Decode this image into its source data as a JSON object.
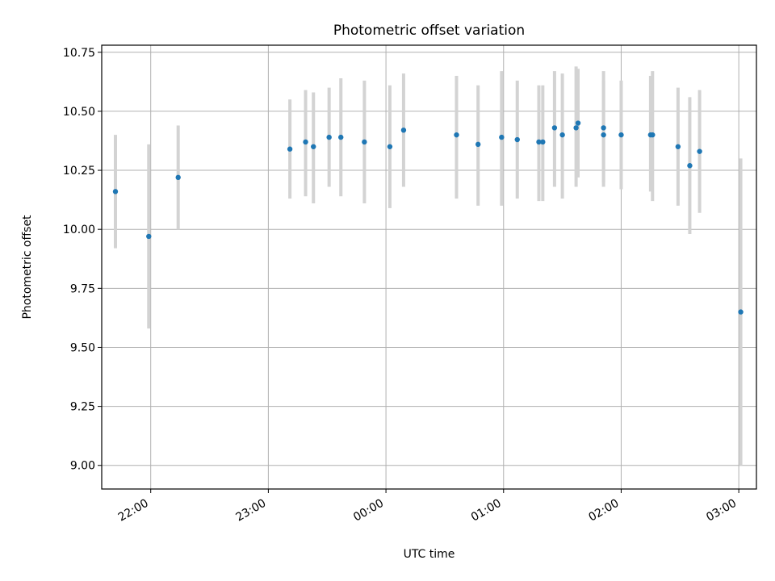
{
  "chart_data": {
    "type": "scatter",
    "title": "Photometric offset variation",
    "xlabel": "UTC time",
    "ylabel": "Photometric offset",
    "xlim": [
      "21:35",
      "03:09"
    ],
    "ylim": [
      8.9,
      10.78
    ],
    "grid": true,
    "x_ticks": [
      "22:00",
      "23:00",
      "00:00",
      "01:00",
      "02:00",
      "03:00"
    ],
    "y_ticks": [
      "9.00",
      "9.25",
      "9.50",
      "9.75",
      "10.00",
      "10.25",
      "10.50",
      "10.75"
    ],
    "colors": {
      "point": "#1f77b4",
      "errorbar": "#d3d3d3",
      "grid": "#b0b0b0"
    },
    "points": [
      {
        "x": "21:42",
        "y": 10.16,
        "ylow": 9.92,
        "yhigh": 10.4
      },
      {
        "x": "21:59",
        "y": 9.97,
        "ylow": 9.58,
        "yhigh": 10.36
      },
      {
        "x": "22:14",
        "y": 10.22,
        "ylow": 10.0,
        "yhigh": 10.44
      },
      {
        "x": "23:11",
        "y": 10.34,
        "ylow": 10.13,
        "yhigh": 10.55
      },
      {
        "x": "23:19",
        "y": 10.37,
        "ylow": 10.14,
        "yhigh": 10.59
      },
      {
        "x": "23:23",
        "y": 10.35,
        "ylow": 10.11,
        "yhigh": 10.58
      },
      {
        "x": "23:31",
        "y": 10.39,
        "ylow": 10.18,
        "yhigh": 10.6
      },
      {
        "x": "23:37",
        "y": 10.39,
        "ylow": 10.14,
        "yhigh": 10.64
      },
      {
        "x": "23:49",
        "y": 10.37,
        "ylow": 10.11,
        "yhigh": 10.63
      },
      {
        "x": "00:02",
        "y": 10.35,
        "ylow": 10.09,
        "yhigh": 10.61
      },
      {
        "x": "00:09",
        "y": 10.42,
        "ylow": 10.18,
        "yhigh": 10.66
      },
      {
        "x": "00:36",
        "y": 10.4,
        "ylow": 10.13,
        "yhigh": 10.65
      },
      {
        "x": "00:47",
        "y": 10.36,
        "ylow": 10.1,
        "yhigh": 10.61
      },
      {
        "x": "00:59",
        "y": 10.39,
        "ylow": 10.1,
        "yhigh": 10.67
      },
      {
        "x": "01:07",
        "y": 10.38,
        "ylow": 10.13,
        "yhigh": 10.63
      },
      {
        "x": "01:18",
        "y": 10.37,
        "ylow": 10.12,
        "yhigh": 10.61
      },
      {
        "x": "01:20",
        "y": 10.37,
        "ylow": 10.12,
        "yhigh": 10.61
      },
      {
        "x": "01:26",
        "y": 10.43,
        "ylow": 10.18,
        "yhigh": 10.67
      },
      {
        "x": "01:30",
        "y": 10.4,
        "ylow": 10.13,
        "yhigh": 10.66
      },
      {
        "x": "01:37",
        "y": 10.43,
        "ylow": 10.18,
        "yhigh": 10.69
      },
      {
        "x": "01:38",
        "y": 10.45,
        "ylow": 10.22,
        "yhigh": 10.68
      },
      {
        "x": "01:51",
        "y": 10.4,
        "ylow": 10.18,
        "yhigh": 10.63
      },
      {
        "x": "01:51",
        "y": 10.43,
        "ylow": 10.2,
        "yhigh": 10.67
      },
      {
        "x": "02:00",
        "y": 10.4,
        "ylow": 10.17,
        "yhigh": 10.63
      },
      {
        "x": "02:15",
        "y": 10.4,
        "ylow": 10.16,
        "yhigh": 10.65
      },
      {
        "x": "02:16",
        "y": 10.4,
        "ylow": 10.12,
        "yhigh": 10.67
      },
      {
        "x": "02:29",
        "y": 10.35,
        "ylow": 10.1,
        "yhigh": 10.6
      },
      {
        "x": "02:35",
        "y": 10.27,
        "ylow": 9.98,
        "yhigh": 10.56
      },
      {
        "x": "02:40",
        "y": 10.33,
        "ylow": 10.07,
        "yhigh": 10.59
      },
      {
        "x": "03:01",
        "y": 9.65,
        "ylow": 9.0,
        "yhigh": 10.3
      }
    ]
  }
}
